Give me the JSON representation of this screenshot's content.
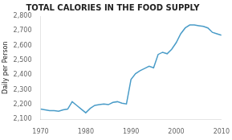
{
  "chart_data": {
    "type": "line",
    "title": "TOTAL CALORIES IN THE FOOD SUPPLY",
    "ylabel": "Daily per Person",
    "x": [
      1970,
      1971,
      1972,
      1973,
      1974,
      1975,
      1976,
      1977,
      1978,
      1979,
      1980,
      1981,
      1982,
      1983,
      1984,
      1985,
      1986,
      1987,
      1988,
      1989,
      1990,
      1991,
      1992,
      1993,
      1994,
      1995,
      1996,
      1997,
      1998,
      1999,
      2000,
      2001,
      2002,
      2003,
      2004,
      2005,
      2006,
      2007,
      2008,
      2009,
      2010
    ],
    "values": [
      2170,
      2165,
      2160,
      2160,
      2155,
      2165,
      2170,
      2220,
      2195,
      2170,
      2145,
      2175,
      2195,
      2200,
      2205,
      2200,
      2215,
      2220,
      2210,
      2205,
      2370,
      2410,
      2430,
      2445,
      2460,
      2450,
      2540,
      2555,
      2545,
      2575,
      2620,
      2680,
      2720,
      2740,
      2740,
      2735,
      2730,
      2720,
      2690,
      2680,
      2670
    ],
    "color": "#4a9cc8",
    "xlim": [
      1970,
      2010
    ],
    "ylim": [
      2100,
      2800
    ],
    "xticks": [
      1970,
      1980,
      1990,
      2000,
      2010
    ],
    "yticks": [
      {
        "value": 2100,
        "label": "2,100"
      },
      {
        "value": 2200,
        "label": "2,200"
      },
      {
        "value": 2300,
        "label": "2,300"
      },
      {
        "value": 2400,
        "label": "2,400"
      },
      {
        "value": 2500,
        "label": "2,500"
      },
      {
        "value": 2600,
        "label": "2,600"
      },
      {
        "value": 2700,
        "label": "2,700"
      },
      {
        "value": 2800,
        "label": "2,800"
      }
    ],
    "grid": false
  }
}
